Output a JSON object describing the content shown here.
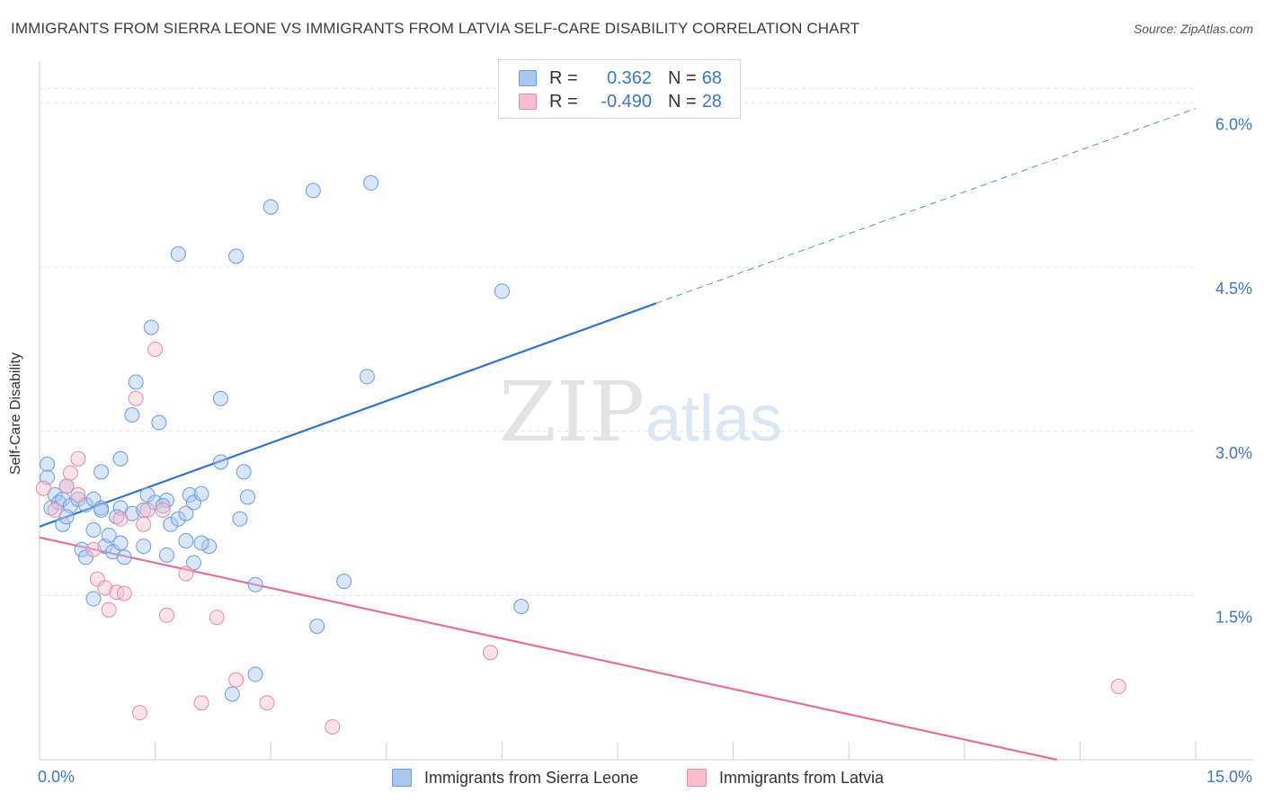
{
  "header": {
    "title": "IMMIGRANTS FROM SIERRA LEONE VS IMMIGRANTS FROM LATVIA SELF-CARE DISABILITY CORRELATION CHART",
    "source": "Source: ZipAtlas.com"
  },
  "watermark": {
    "zip": "ZIP",
    "atlas": "atlas"
  },
  "legend": {
    "rows": [
      {
        "r_label": "R =",
        "r_value": "0.362",
        "n_label": "N =",
        "n_value": "68",
        "color": "#a9c8f0",
        "border": "#6a9be0"
      },
      {
        "r_label": "R =",
        "r_value": "-0.490",
        "n_label": "N =",
        "n_value": "28",
        "color": "#f7bccd",
        "border": "#e88aa8"
      }
    ]
  },
  "bottom_legend": {
    "items": [
      {
        "label": "Immigrants from Sierra Leone",
        "color": "#a9c8f0",
        "border": "#6a9be0"
      },
      {
        "label": "Immigrants from Latvia",
        "color": "#f7bccd",
        "border": "#e88aa8"
      }
    ]
  },
  "chart_data": {
    "type": "scatter",
    "title": "IMMIGRANTS FROM SIERRA LEONE VS IMMIGRANTS FROM LATVIA SELF-CARE DISABILITY CORRELATION CHART",
    "xlabel": "",
    "ylabel": "Self-Care Disability",
    "xlim": [
      0,
      15
    ],
    "ylim": [
      0,
      6.3
    ],
    "x_tick_labels": [
      {
        "value": 0,
        "label": "0.0%"
      },
      {
        "value": 15,
        "label": "15.0%"
      }
    ],
    "y_ticks": [
      {
        "value": 1.5,
        "label": "1.5%"
      },
      {
        "value": 3.0,
        "label": "3.0%"
      },
      {
        "value": 4.5,
        "label": "4.5%"
      },
      {
        "value": 6.0,
        "label": "6.0%"
      }
    ],
    "x_minor_ticks": [
      1.5,
      3.0,
      4.5,
      6.0,
      7.5,
      9.0,
      10.5,
      12.0,
      13.5,
      15.0
    ],
    "grid": true,
    "legend_position": "top-center",
    "series": [
      {
        "name": "Immigrants from Sierra Leone",
        "color": "#a9c8f0",
        "stroke": "#6a9be0",
        "line_color": "#2f74d0",
        "trend": {
          "x0": 0.0,
          "y0": 2.13,
          "x1": 8.0,
          "y1": 4.17,
          "dash_to_x": 15.0,
          "dash_to_y": 5.95
        },
        "points": [
          [
            0.1,
            2.7
          ],
          [
            0.1,
            2.58
          ],
          [
            0.15,
            2.3
          ],
          [
            0.2,
            2.42
          ],
          [
            0.25,
            2.35
          ],
          [
            0.3,
            2.38
          ],
          [
            0.35,
            2.5
          ],
          [
            0.4,
            2.32
          ],
          [
            0.5,
            2.38
          ],
          [
            0.6,
            2.33
          ],
          [
            0.7,
            2.38
          ],
          [
            0.8,
            2.3
          ],
          [
            0.3,
            2.15
          ],
          [
            0.35,
            2.22
          ],
          [
            0.7,
            2.1
          ],
          [
            0.8,
            2.28
          ],
          [
            0.55,
            1.92
          ],
          [
            0.6,
            1.85
          ],
          [
            0.85,
            1.95
          ],
          [
            0.95,
            1.9
          ],
          [
            1.05,
            1.98
          ],
          [
            1.1,
            1.85
          ],
          [
            0.9,
            2.05
          ],
          [
            1.05,
            2.3
          ],
          [
            1.2,
            2.25
          ],
          [
            1.35,
            2.28
          ],
          [
            1.4,
            2.42
          ],
          [
            1.5,
            2.35
          ],
          [
            1.65,
            2.37
          ],
          [
            1.7,
            2.15
          ],
          [
            1.8,
            2.2
          ],
          [
            1.9,
            2.25
          ],
          [
            1.95,
            2.42
          ],
          [
            2.0,
            2.35
          ],
          [
            0.8,
            2.63
          ],
          [
            1.05,
            2.75
          ],
          [
            1.25,
            3.45
          ],
          [
            1.2,
            3.15
          ],
          [
            1.55,
            3.08
          ],
          [
            1.45,
            3.95
          ],
          [
            1.8,
            4.62
          ],
          [
            2.0,
            1.8
          ],
          [
            2.2,
            1.95
          ],
          [
            2.1,
            2.43
          ],
          [
            2.35,
            2.72
          ],
          [
            2.35,
            3.3
          ],
          [
            2.6,
            2.2
          ],
          [
            2.65,
            2.63
          ],
          [
            2.7,
            2.4
          ],
          [
            2.8,
            1.6
          ],
          [
            2.5,
            0.6
          ],
          [
            2.8,
            0.78
          ],
          [
            2.55,
            4.6
          ],
          [
            3.0,
            5.05
          ],
          [
            3.55,
            5.2
          ],
          [
            4.3,
            5.27
          ],
          [
            6.0,
            4.28
          ],
          [
            3.6,
            1.22
          ],
          [
            3.95,
            1.63
          ],
          [
            4.25,
            3.5
          ],
          [
            6.25,
            1.4
          ],
          [
            0.7,
            1.47
          ],
          [
            1.0,
            2.22
          ],
          [
            1.35,
            1.95
          ],
          [
            1.6,
            2.32
          ],
          [
            1.9,
            2.0
          ],
          [
            2.1,
            1.98
          ],
          [
            1.65,
            1.87
          ]
        ]
      },
      {
        "name": "Immigrants from Latvia",
        "color": "#f7bccd",
        "stroke": "#e88aa8",
        "line_color": "#e56f99",
        "trend": {
          "x0": 0.0,
          "y0": 2.03,
          "x1": 13.2,
          "y1": 0.0
        },
        "points": [
          [
            0.05,
            2.48
          ],
          [
            0.2,
            2.28
          ],
          [
            0.35,
            2.5
          ],
          [
            0.4,
            2.62
          ],
          [
            0.5,
            2.42
          ],
          [
            0.5,
            2.75
          ],
          [
            0.7,
            1.92
          ],
          [
            0.75,
            1.65
          ],
          [
            0.85,
            1.57
          ],
          [
            0.9,
            1.37
          ],
          [
            1.0,
            1.53
          ],
          [
            1.05,
            2.2
          ],
          [
            1.1,
            1.52
          ],
          [
            1.25,
            3.3
          ],
          [
            1.35,
            2.15
          ],
          [
            1.4,
            2.28
          ],
          [
            1.5,
            3.75
          ],
          [
            1.6,
            2.28
          ],
          [
            1.65,
            1.32
          ],
          [
            1.9,
            1.7
          ],
          [
            2.1,
            0.52
          ],
          [
            2.3,
            1.3
          ],
          [
            2.55,
            0.73
          ],
          [
            2.95,
            0.52
          ],
          [
            3.8,
            0.3
          ],
          [
            5.85,
            0.98
          ],
          [
            14.0,
            0.67
          ],
          [
            1.3,
            0.43
          ]
        ]
      }
    ]
  }
}
